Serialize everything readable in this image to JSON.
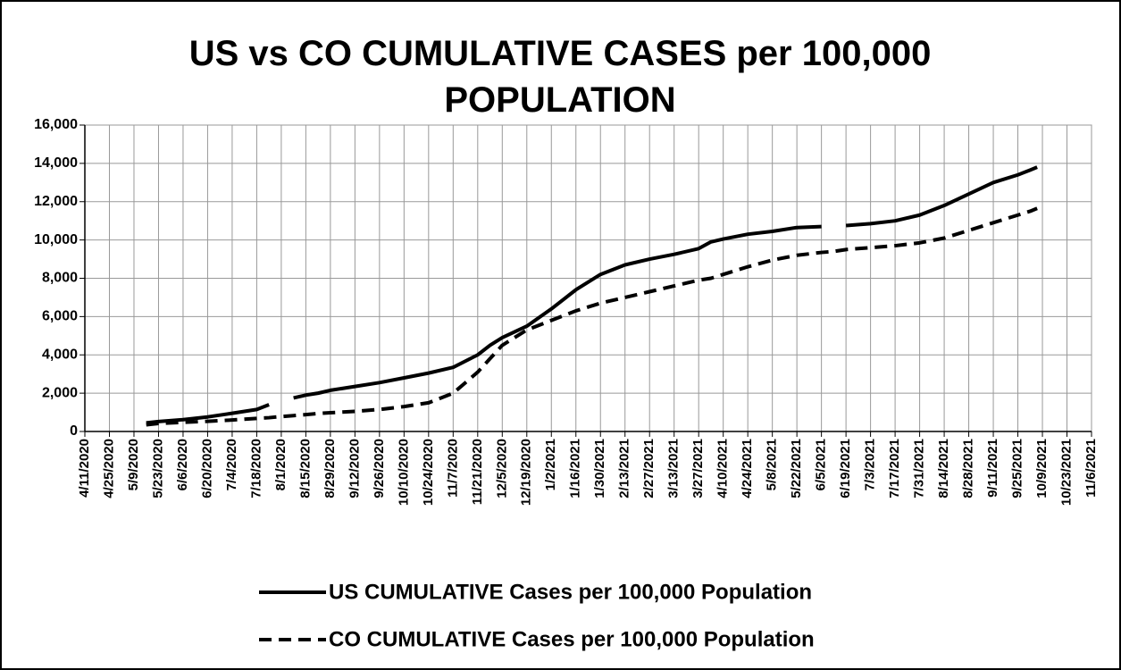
{
  "chart_data": {
    "type": "line",
    "title": "US vs CO CUMULATIVE CASES per 100,000 POPULATION",
    "x": [
      "5/16/2020",
      "5/23/2020",
      "6/6/2020",
      "6/20/2020",
      "7/4/2020",
      "7/18/2020",
      "7/25/2020",
      "8/1/2020",
      "8/8/2020",
      "8/15/2020",
      "8/22/2020",
      "8/29/2020",
      "9/12/2020",
      "9/26/2020",
      "10/10/2020",
      "10/24/2020",
      "11/7/2020",
      "11/21/2020",
      "11/28/2020",
      "12/5/2020",
      "12/19/2020",
      "1/2/2021",
      "1/16/2021",
      "1/30/2021",
      "2/13/2021",
      "2/27/2021",
      "3/13/2021",
      "3/27/2021",
      "4/3/2021",
      "4/10/2021",
      "4/24/2021",
      "5/8/2021",
      "5/22/2021",
      "6/5/2021",
      "6/12/2021",
      "6/19/2021",
      "7/3/2021",
      "7/17/2021",
      "7/31/2021",
      "8/14/2021",
      "8/28/2021",
      "9/11/2021",
      "9/25/2021",
      "10/2/2021",
      "10/6/2021"
    ],
    "series": [
      {
        "name": "US CUMULATIVE Cases per 100,000 Population",
        "color": "#000000",
        "line_style": "solid",
        "values": [
          450,
          520,
          620,
          760,
          950,
          1150,
          1400,
          null,
          1750,
          1900,
          2000,
          2150,
          2350,
          2550,
          2800,
          3050,
          3350,
          4000,
          4500,
          4900,
          5500,
          6400,
          7400,
          8200,
          8700,
          9000,
          9250,
          9550,
          9900,
          10050,
          10300,
          10450,
          10650,
          10700,
          null,
          10750,
          10850,
          11000,
          11300,
          11800,
          12400,
          13000,
          13400,
          13650,
          13800
        ]
      },
      {
        "name": "CO CUMULATIVE Cases per 100,000 Population",
        "color": "#000000",
        "line_style": "dashed",
        "values": [
          350,
          420,
          480,
          530,
          600,
          680,
          720,
          780,
          830,
          880,
          940,
          980,
          1050,
          1150,
          1300,
          1500,
          2000,
          3100,
          3800,
          4500,
          5300,
          5800,
          6300,
          6700,
          7000,
          7300,
          7600,
          7900,
          8000,
          8200,
          8600,
          8950,
          9200,
          9350,
          9400,
          9500,
          9600,
          9700,
          9850,
          10100,
          10500,
          10900,
          11300,
          11500,
          11650
        ]
      }
    ],
    "xlim": [
      "4/11/2020",
      "11/6/2021"
    ],
    "xticks": [
      "4/11/2020",
      "4/25/2020",
      "5/9/2020",
      "5/23/2020",
      "6/6/2020",
      "6/20/2020",
      "7/4/2020",
      "7/18/2020",
      "8/1/2020",
      "8/15/2020",
      "8/29/2020",
      "9/12/2020",
      "9/26/2020",
      "10/10/2020",
      "10/24/2020",
      "11/7/2020",
      "11/21/2020",
      "12/5/2020",
      "12/19/2020",
      "1/2/2021",
      "1/16/2021",
      "1/30/2021",
      "2/13/2021",
      "2/27/2021",
      "3/13/2021",
      "3/27/2021",
      "4/10/2021",
      "4/24/2021",
      "5/8/2021",
      "5/22/2021",
      "6/5/2021",
      "6/19/2021",
      "7/3/2021",
      "7/17/2021",
      "7/31/2021",
      "8/14/2021",
      "8/28/2021",
      "9/11/2021",
      "9/25/2021",
      "10/9/2021",
      "10/23/2021",
      "11/6/2021"
    ],
    "ylim": [
      0,
      16000
    ],
    "yticks": [
      0,
      {
        "value": 2000,
        "label": "2,000"
      },
      {
        "value": 4000,
        "label": "4,000"
      },
      {
        "value": 6000,
        "label": "6,000"
      },
      {
        "value": 8000,
        "label": "8,000"
      },
      {
        "value": 10000,
        "label": "10,000"
      },
      {
        "value": 12000,
        "label": "12,000"
      },
      {
        "value": 14000,
        "label": "14,000"
      },
      {
        "value": 16000,
        "label": "16,000"
      }
    ],
    "grid": true,
    "legend": "bottom"
  }
}
